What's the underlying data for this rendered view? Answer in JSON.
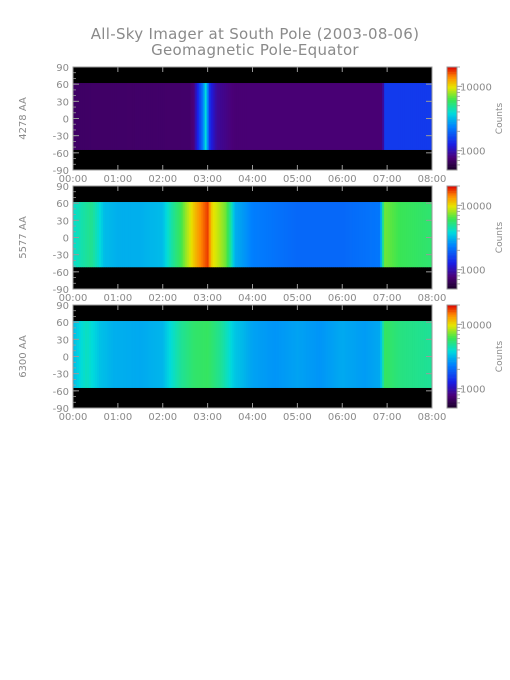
{
  "title": "All-Sky Imager at South Pole (2003-08-06)",
  "subtitle": "Geomagnetic Pole-Equator",
  "colorbar": {
    "label": "Counts",
    "ticks": [
      "10000",
      "1000"
    ]
  },
  "chart_data": [
    {
      "type": "heatmap",
      "ylabel": "4278 AA",
      "x_ticks": [
        "00:00",
        "01:00",
        "02:00",
        "03:00",
        "04:00",
        "05:00",
        "06:00",
        "07:00",
        "08:00"
      ],
      "y_ticks": [
        90,
        60,
        30,
        0,
        -30,
        -60,
        -90
      ],
      "xlim": [
        "00:00",
        "08:00"
      ],
      "ylim": [
        -90,
        90
      ],
      "data_extent_lat": [
        -55,
        62
      ],
      "counts_range": [
        500,
        20000
      ],
      "log_scale": true,
      "colorbar_ticks": [
        10000,
        1000
      ],
      "profile_hours": [
        0,
        2.6,
        2.7,
        2.8,
        2.9,
        2.95,
        3.0,
        3.05,
        3.2,
        3.6,
        6.9,
        6.95,
        8
      ],
      "profile_counts": [
        700,
        720,
        800,
        1400,
        2200,
        4000,
        2500,
        1300,
        900,
        760,
        760,
        1500,
        1500
      ]
    },
    {
      "type": "heatmap",
      "ylabel": "5577 AA",
      "x_ticks": [
        "00:00",
        "01:00",
        "02:00",
        "03:00",
        "04:00",
        "05:00",
        "06:00",
        "07:00",
        "08:00"
      ],
      "y_ticks": [
        90,
        60,
        30,
        0,
        -30,
        -60,
        -90
      ],
      "xlim": [
        "00:00",
        "08:00"
      ],
      "ylim": [
        -90,
        90
      ],
      "data_extent_lat": [
        -52,
        62
      ],
      "counts_range": [
        500,
        20000
      ],
      "log_scale": true,
      "colorbar_ticks": [
        10000,
        1000
      ],
      "profile_hours": [
        0,
        0.4,
        0.7,
        1.0,
        1.5,
        2.0,
        2.4,
        2.6,
        2.8,
        3.0,
        3.1,
        3.4,
        3.6,
        4.0,
        5.0,
        6.0,
        6.85,
        6.95,
        7.3,
        8
      ],
      "profile_counts": [
        4000,
        5000,
        3200,
        3000,
        3000,
        3200,
        6000,
        9000,
        13000,
        17000,
        10000,
        7000,
        3000,
        2300,
        2000,
        2000,
        2200,
        7000,
        6000,
        5500
      ]
    },
    {
      "type": "heatmap",
      "ylabel": "6300 AA",
      "x_ticks": [
        "00:00",
        "01:00",
        "02:00",
        "03:00",
        "04:00",
        "05:00",
        "06:00",
        "07:00",
        "08:00"
      ],
      "y_ticks": [
        90,
        60,
        30,
        0,
        -30,
        -60,
        -90
      ],
      "xlim": [
        "00:00",
        "08:00"
      ],
      "ylim": [
        -90,
        90
      ],
      "data_extent_lat": [
        -55,
        62
      ],
      "counts_range": [
        500,
        20000
      ],
      "log_scale": true,
      "colorbar_ticks": [
        10000,
        1000
      ],
      "profile_hours": [
        0,
        0.3,
        0.6,
        0.9,
        1.5,
        2.0,
        2.4,
        2.7,
        3.0,
        3.3,
        3.6,
        4.0,
        4.5,
        5.0,
        5.5,
        6.0,
        6.5,
        6.85,
        6.95,
        7.3,
        8
      ],
      "profile_counts": [
        3200,
        4200,
        3300,
        3000,
        2900,
        3100,
        4800,
        5600,
        5800,
        4800,
        3400,
        2800,
        2600,
        2800,
        2600,
        2900,
        2700,
        2900,
        5800,
        5200,
        4800
      ]
    }
  ]
}
